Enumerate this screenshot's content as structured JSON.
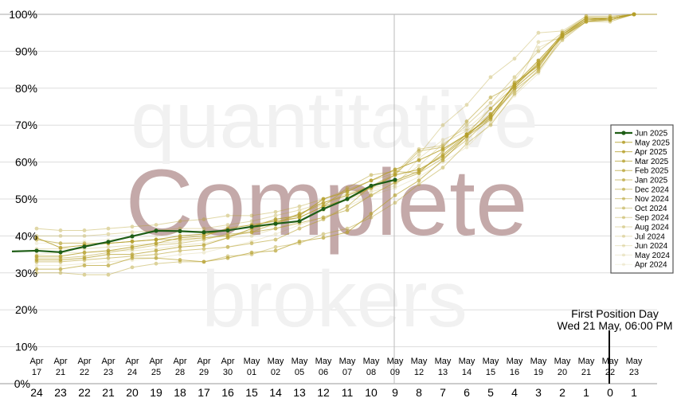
{
  "chart_data": {
    "type": "line",
    "title": "",
    "xlabel": "",
    "ylabel": "",
    "ylim": [
      0,
      100
    ],
    "yticks": [
      "0%",
      "10%",
      "20%",
      "30%",
      "40%",
      "50%",
      "60%",
      "70%",
      "80%",
      "90%",
      "100%"
    ],
    "grid": true,
    "legend_position": "right",
    "x_date_labels": [
      [
        "Apr",
        "17"
      ],
      [
        "Apr",
        "21"
      ],
      [
        "Apr",
        "22"
      ],
      [
        "Apr",
        "23"
      ],
      [
        "Apr",
        "24"
      ],
      [
        "Apr",
        "25"
      ],
      [
        "Apr",
        "28"
      ],
      [
        "Apr",
        "29"
      ],
      [
        "Apr",
        "30"
      ],
      [
        "May",
        "01"
      ],
      [
        "May",
        "02"
      ],
      [
        "May",
        "05"
      ],
      [
        "May",
        "06"
      ],
      [
        "May",
        "07"
      ],
      [
        "May",
        "08"
      ],
      [
        "May",
        "09"
      ],
      [
        "May",
        "12"
      ],
      [
        "May",
        "13"
      ],
      [
        "May",
        "14"
      ],
      [
        "May",
        "15"
      ],
      [
        "May",
        "16"
      ],
      [
        "May",
        "19"
      ],
      [
        "May",
        "20"
      ],
      [
        "May",
        "21"
      ],
      [
        "May",
        "22"
      ],
      [
        "May",
        "23"
      ]
    ],
    "x_day_labels": [
      "24",
      "23",
      "22",
      "21",
      "20",
      "19",
      "18",
      "17",
      "16",
      "15",
      "14",
      "13",
      "12",
      "11",
      "10",
      "9",
      "8",
      "7",
      "6",
      "5",
      "4",
      "3",
      "2",
      "1",
      "0",
      "1"
    ],
    "annotation": {
      "line1": "First Position Day",
      "line2": "Wed 21 May, 06:00 PM"
    },
    "highlight_color": "#1f5e17",
    "series_color": "#b59f2a",
    "series": [
      {
        "name": "Jun 2025",
        "values": [
          36.0,
          35.6,
          37.1,
          38.4,
          39.9,
          41.4,
          41.3,
          41.0,
          41.5,
          42.5,
          43.3,
          44.0,
          47.3,
          50.0,
          53.6,
          55.2
        ]
      },
      {
        "name": "May 2025",
        "values": [
          39.5,
          36.8,
          37.5,
          38.0,
          38.5,
          39.0,
          40.0,
          40.5,
          41.5,
          42.5,
          44.5,
          45.5,
          50.0,
          52.0,
          55.0,
          58.0,
          60.5,
          63.5,
          67.5,
          72.5,
          81.0,
          87.5,
          94.5,
          99,
          99,
          100
        ]
      },
      {
        "name": "Apr 2025",
        "values": [
          34.5,
          34.5,
          35.5,
          36.0,
          37.0,
          38.0,
          39.5,
          40.0,
          42.0,
          43.0,
          44.0,
          45.0,
          48.0,
          50.0,
          53.0,
          56.5,
          58.0,
          61.5,
          67.0,
          73.0,
          80.5,
          86.5,
          94.0,
          98.5,
          98.5,
          100
        ]
      },
      {
        "name": "Mar 2025",
        "values": [
          33.5,
          33.5,
          34.0,
          35.0,
          35.0,
          36.0,
          37.0,
          37.5,
          39.5,
          42.0,
          43.5,
          46.0,
          49.0,
          51.0,
          53.5,
          55.0,
          57.5,
          62.0,
          67.5,
          72.0,
          80.0,
          85.5,
          94.5,
          98.5,
          99,
          100
        ]
      },
      {
        "name": "Feb 2025",
        "values": [
          31.0,
          31.0,
          32.0,
          32.0,
          34.0,
          34.0,
          33.5,
          33.0,
          34.0,
          35.5,
          36.0,
          38.5,
          39.5,
          41.0,
          46.0,
          51.0,
          55.0,
          60.5,
          67.0,
          71.5,
          81.5,
          86.0,
          94.5,
          99,
          98.5,
          100
        ]
      },
      {
        "name": "Jan 2025",
        "values": [
          39.0,
          38.0,
          38.0,
          38.0,
          38.5,
          39.0,
          39.0,
          39.5,
          40.0,
          41.0,
          42.0,
          43.5,
          45.0,
          47.0,
          51.0,
          54.5,
          57.0,
          63.0,
          67.5,
          74.5,
          80.5,
          87.0,
          94.0,
          98,
          99,
          100
        ]
      },
      {
        "name": "Dec 2024",
        "values": [
          33.0,
          33.0,
          33.5,
          34.0,
          34.5,
          35.0,
          36.0,
          36.5,
          37.0,
          38.0,
          39.0,
          42.0,
          44.5,
          48.0,
          53.5,
          56.5,
          63.0,
          64.0,
          71.0,
          77.5,
          81.0,
          86.5,
          95.0,
          99,
          99,
          100
        ]
      },
      {
        "name": "Nov 2024",
        "values": [
          34.0,
          34.0,
          34.5,
          35.5,
          36.5,
          37.5,
          38.0,
          39.0,
          40.5,
          41.0,
          43.5,
          45.0,
          48.0,
          53.0,
          56.5,
          57.5,
          57.0,
          61.0,
          66.0,
          72.0,
          79.5,
          84.5,
          94.0,
          98,
          98.5,
          100
        ]
      },
      {
        "name": "Oct 2024",
        "values": [
          30.0,
          30.0,
          29.5,
          29.5,
          31.5,
          32.5,
          33.0,
          33.0,
          34.5,
          35.0,
          37.0,
          38.0,
          40.5,
          42.0,
          45.0,
          49.0,
          54.0,
          58.5,
          65.0,
          70.0,
          78.5,
          85.0,
          93.0,
          98,
          98,
          100
        ]
      },
      {
        "name": "Sep 2024",
        "values": [
          42.0,
          41.5,
          41.5,
          42.0,
          42.5,
          43.0,
          44.0,
          44.5,
          45.5,
          45.5,
          46.5,
          48.0,
          50.0,
          52.5,
          55.0,
          57.0,
          63.5,
          64.5,
          70.0,
          76.0,
          83.0,
          90.0,
          95.0,
          99.5,
          99.5,
          100
        ]
      },
      {
        "name": "Aug 2024",
        "values": [
          40.0,
          40.0,
          40.0,
          40.5,
          41.0,
          41.5,
          42.0,
          42.0,
          43.0,
          44.0,
          45.5,
          47.0,
          49.0,
          51.5,
          53.5,
          57.0,
          62.0,
          70.0,
          75.5,
          83.0,
          88.0,
          95.0,
          95.5,
          99.5,
          99.5,
          100
        ]
      },
      {
        "name": "Jul 2024",
        "values": [
          36.5,
          36.5,
          36.5,
          37.0,
          37.5,
          38.0,
          38.5,
          39.5,
          40.0,
          41.5,
          43.0,
          46.0,
          48.5,
          51.0,
          53.0,
          54.5,
          59.0,
          65.0,
          68.5,
          73.0,
          79.0,
          92.5,
          93.5,
          98,
          98.5,
          100
        ]
      },
      {
        "name": "Jun 2024",
        "values": [
          35.0,
          35.5,
          35.5,
          36.0,
          36.0,
          36.5,
          37.5,
          38.0,
          39.5,
          40.0,
          42.0,
          44.0,
          47.0,
          50.0,
          52.0,
          53.5,
          61.0,
          66.0,
          69.0,
          74.5,
          82.0,
          91.0,
          94.0,
          99,
          99,
          100
        ]
      },
      {
        "name": "May 2024",
        "values": [
          32.0,
          32.0,
          32.5,
          33.0,
          33.5,
          34.0,
          35.0,
          35.5,
          37.0,
          38.5,
          40.5,
          43.0,
          45.0,
          48.0,
          51.0,
          53.0,
          56.0,
          60.0,
          64.0,
          70.5,
          78.0,
          84.0,
          93.5,
          98.5,
          98.5,
          100
        ]
      },
      {
        "name": "Apr 2024",
        "values": [
          38.0,
          38.0,
          38.5,
          39.0,
          39.5,
          40.0,
          41.0,
          41.5,
          42.5,
          43.0,
          44.5,
          46.0,
          48.5,
          50.5,
          52.5,
          54.0,
          58.0,
          62.0,
          67.0,
          71.0,
          80.0,
          86.0,
          94.0,
          98.5,
          99,
          100
        ]
      }
    ]
  },
  "watermark": {
    "line1": "quantitative",
    "line2": "Complete",
    "line3": "brokers"
  }
}
